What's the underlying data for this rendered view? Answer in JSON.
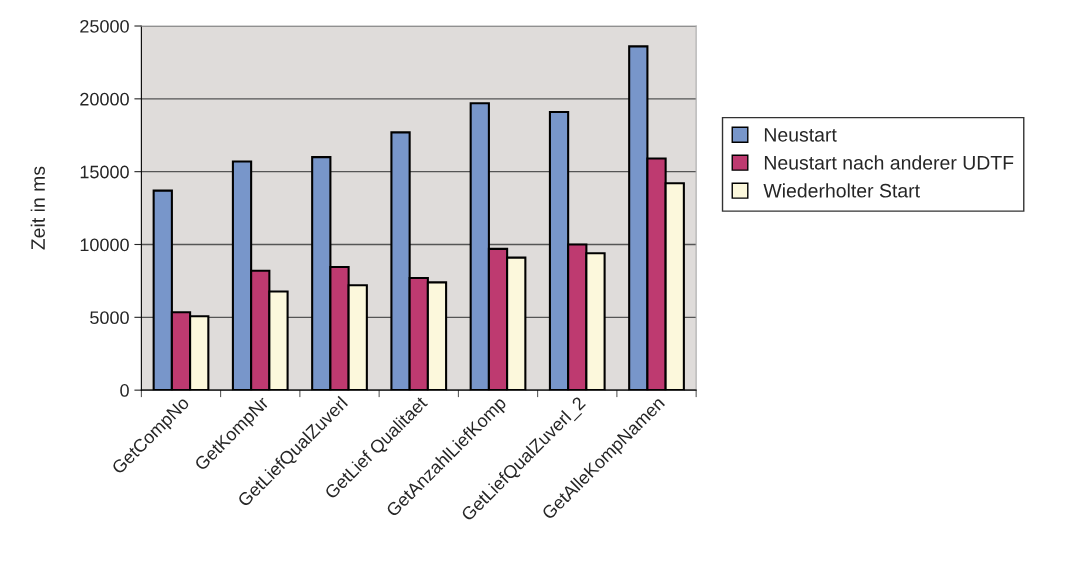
{
  "chart_data": {
    "type": "bar",
    "ylabel": "Zeit in ms",
    "categories": [
      "GetCompNo",
      "GetKompNr",
      "GetLiefQualZuverl",
      "GetLief Qualitaet",
      "GetAnzahlLiefKomp",
      "GetLiefQualZuverl_2",
      "GetAlleKompNamen"
    ],
    "series": [
      {
        "name": "Neustart",
        "color": "#7896ca",
        "values": [
          13700,
          15700,
          16000,
          17700,
          19700,
          19100,
          23600
        ]
      },
      {
        "name": "Neustart nach anderer UDTF",
        "color": "#be3a70",
        "values": [
          5350,
          8200,
          8460,
          7700,
          9700,
          10000,
          15900
        ]
      },
      {
        "name": "Wiederholter Start",
        "color": "#fcf8dc",
        "values": [
          5070,
          6770,
          7200,
          7400,
          9100,
          9400,
          14200
        ]
      }
    ],
    "ylim": [
      0,
      25000
    ],
    "yticks": [
      0,
      5000,
      10000,
      15000,
      20000,
      25000
    ],
    "grid": "y",
    "legend": "right"
  }
}
